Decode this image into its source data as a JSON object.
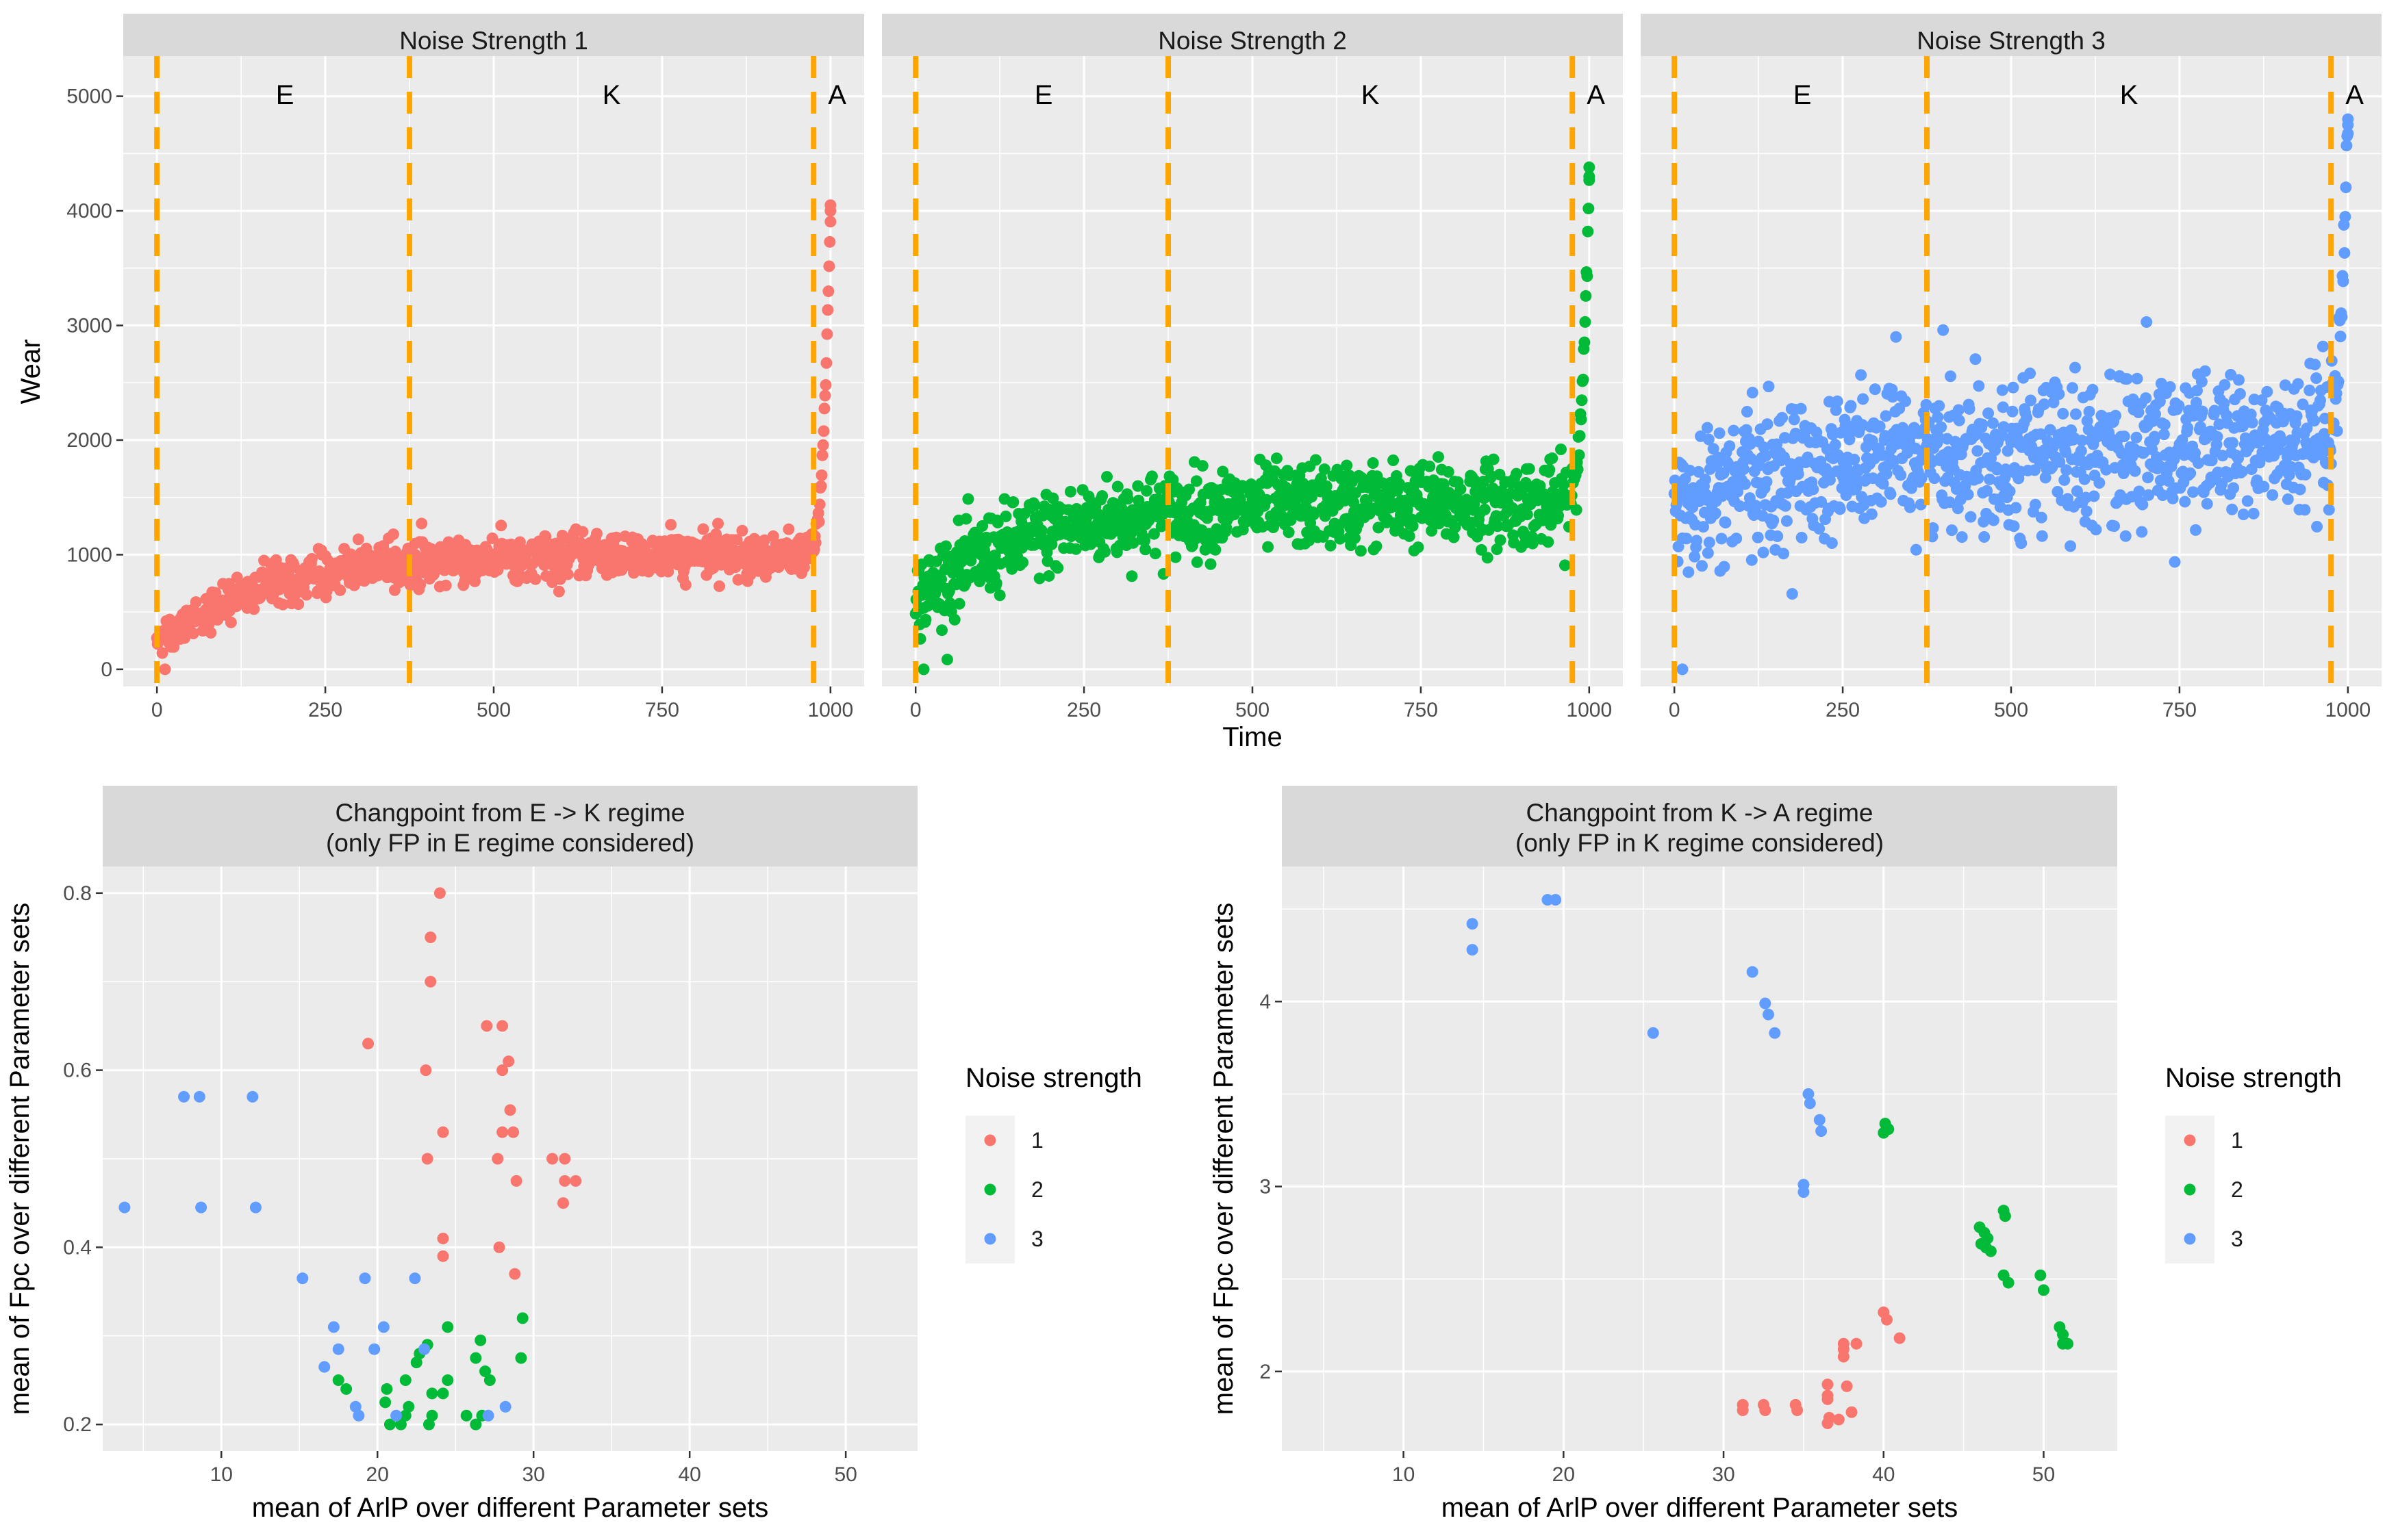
{
  "chart_data": [
    {
      "type": "scatter",
      "facet": "Noise Strength 1",
      "title": "Noise Strength 1",
      "xlabel": "Time",
      "ylabel": "Wear",
      "xlim": [
        -50,
        1050
      ],
      "ylim": [
        -150,
        5350
      ],
      "xticks": [
        0,
        250,
        500,
        750,
        1000
      ],
      "yticks": [
        0,
        1000,
        2000,
        3000,
        4000,
        5000
      ],
      "regime_lines": [
        0,
        375,
        975
      ],
      "regime_labels": [
        {
          "label": "E",
          "x": 190
        },
        {
          "label": "K",
          "x": 675
        },
        {
          "label": "A",
          "x": 1010
        }
      ],
      "color": "#F8766D",
      "trend": {
        "start": 250,
        "plateau": 1000,
        "rate": 0.006,
        "spread": 90,
        "end_values": [
          4000,
          4050
        ]
      },
      "points_note": "~1000 points, Wear rising from ~250 at t=0 to ~1000 plateau, spiking to ~4050 at t~1000"
    },
    {
      "type": "scatter",
      "facet": "Noise Strength 2",
      "title": "Noise Strength 2",
      "xlabel": "Time",
      "ylabel": "Wear",
      "xlim": [
        -50,
        1050
      ],
      "ylim": [
        -150,
        5350
      ],
      "xticks": [
        0,
        250,
        500,
        750,
        1000
      ],
      "yticks": [
        0,
        1000,
        2000,
        3000,
        4000,
        5000
      ],
      "regime_lines": [
        0,
        375,
        975
      ],
      "regime_labels": [
        {
          "label": "E",
          "x": 190
        },
        {
          "label": "K",
          "x": 675
        },
        {
          "label": "A",
          "x": 1010
        }
      ],
      "color": "#00BA38",
      "trend": {
        "start": 600,
        "plateau": 1450,
        "rate": 0.006,
        "spread": 180,
        "end_values": [
          4300,
          4380
        ]
      },
      "points_note": "~1000 points, Wear rising from ~600 to ~1450 plateau, spiking to ~4380 at t~1000"
    },
    {
      "type": "scatter",
      "facet": "Noise Strength 3",
      "title": "Noise Strength 3",
      "xlabel": "Time",
      "ylabel": "Wear",
      "xlim": [
        -50,
        1050
      ],
      "ylim": [
        -150,
        5350
      ],
      "xticks": [
        0,
        250,
        500,
        750,
        1000
      ],
      "yticks": [
        0,
        1000,
        2000,
        3000,
        4000,
        5000
      ],
      "regime_lines": [
        0,
        375,
        975
      ],
      "regime_labels": [
        {
          "label": "E",
          "x": 190
        },
        {
          "label": "K",
          "x": 675
        },
        {
          "label": "A",
          "x": 1010
        }
      ],
      "color": "#619CFF",
      "trend": {
        "start": 1300,
        "plateau": 1950,
        "rate": 0.006,
        "spread": 320,
        "end_values": [
          4750,
          4800
        ]
      },
      "points_note": "~1000 points, Wear rising from ~1300 to ~1950 plateau with wide spread, spiking to ~4800 at t~1000"
    },
    {
      "type": "scatter",
      "title": "Changpoint from E -> K regime\n(only FP in E regime considered)",
      "title_lines": [
        "Changpoint from E -> K regime",
        "(only FP in E regime considered)"
      ],
      "xlabel": "mean of ArlP over different Parameter sets",
      "ylabel": "mean of Fpc over different Parameter sets",
      "xlim": [
        2.4,
        54.6
      ],
      "ylim": [
        0.17,
        0.83
      ],
      "xticks": [
        10,
        20,
        30,
        40,
        50
      ],
      "yticks": [
        0.2,
        0.4,
        0.6,
        0.8
      ],
      "ytick_labels": [
        "0.2",
        "0.4",
        "0.6",
        "0.8"
      ],
      "legend": {
        "title": "Noise strength",
        "entries": [
          "1",
          "2",
          "3"
        ]
      },
      "series": [
        {
          "name": "1",
          "color": "#F8766D",
          "points": [
            [
              24.0,
              0.8
            ],
            [
              23.4,
              0.75
            ],
            [
              23.4,
              0.7
            ],
            [
              19.4,
              0.63
            ],
            [
              27.0,
              0.65
            ],
            [
              28.0,
              0.65
            ],
            [
              28.4,
              0.61
            ],
            [
              28.0,
              0.6
            ],
            [
              23.1,
              0.6
            ],
            [
              28.5,
              0.555
            ],
            [
              24.2,
              0.53
            ],
            [
              28.0,
              0.53
            ],
            [
              28.7,
              0.53
            ],
            [
              31.2,
              0.5
            ],
            [
              32.0,
              0.5
            ],
            [
              23.2,
              0.5
            ],
            [
              27.7,
              0.5
            ],
            [
              32.0,
              0.475
            ],
            [
              32.7,
              0.475
            ],
            [
              28.9,
              0.475
            ],
            [
              31.9,
              0.45
            ],
            [
              24.2,
              0.41
            ],
            [
              24.2,
              0.39
            ],
            [
              27.8,
              0.4
            ],
            [
              28.8,
              0.37
            ]
          ]
        },
        {
          "name": "2",
          "color": "#00BA38",
          "points": [
            [
              29.3,
              0.32
            ],
            [
              24.5,
              0.31
            ],
            [
              22.7,
              0.28
            ],
            [
              23.2,
              0.29
            ],
            [
              26.6,
              0.295
            ],
            [
              26.3,
              0.275
            ],
            [
              29.2,
              0.275
            ],
            [
              22.5,
              0.27
            ],
            [
              26.9,
              0.26
            ],
            [
              27.2,
              0.25
            ],
            [
              24.5,
              0.25
            ],
            [
              21.8,
              0.25
            ],
            [
              17.5,
              0.25
            ],
            [
              18.0,
              0.24
            ],
            [
              20.6,
              0.24
            ],
            [
              23.5,
              0.235
            ],
            [
              24.2,
              0.235
            ],
            [
              20.5,
              0.225
            ],
            [
              22.0,
              0.22
            ],
            [
              23.5,
              0.21
            ],
            [
              25.7,
              0.21
            ],
            [
              26.7,
              0.21
            ],
            [
              21.8,
              0.21
            ],
            [
              21.5,
              0.2
            ],
            [
              23.3,
              0.2
            ],
            [
              26.3,
              0.2
            ],
            [
              20.8,
              0.2
            ]
          ]
        },
        {
          "name": "3",
          "color": "#619CFF",
          "points": [
            [
              7.6,
              0.57
            ],
            [
              8.6,
              0.57
            ],
            [
              12.0,
              0.57
            ],
            [
              3.8,
              0.445
            ],
            [
              8.7,
              0.445
            ],
            [
              12.2,
              0.445
            ],
            [
              15.2,
              0.365
            ],
            [
              19.2,
              0.365
            ],
            [
              22.4,
              0.365
            ],
            [
              17.2,
              0.31
            ],
            [
              20.4,
              0.31
            ],
            [
              17.5,
              0.285
            ],
            [
              19.8,
              0.285
            ],
            [
              23.0,
              0.285
            ],
            [
              16.6,
              0.265
            ],
            [
              18.6,
              0.22
            ],
            [
              18.8,
              0.21
            ],
            [
              21.2,
              0.21
            ],
            [
              27.1,
              0.21
            ],
            [
              28.2,
              0.22
            ]
          ]
        }
      ]
    },
    {
      "type": "scatter",
      "title": "Changpoint from K -> A regime\n(only FP in K regime considered)",
      "title_lines": [
        "Changpoint from K -> A regime",
        "(only FP in K regime considered)"
      ],
      "xlabel": "mean of ArlP over different Parameter sets",
      "ylabel": "mean of Fpc over different Parameter sets",
      "xlim": [
        2.4,
        54.6
      ],
      "ylim": [
        1.57,
        4.73
      ],
      "xticks": [
        10,
        20,
        30,
        40,
        50
      ],
      "yticks": [
        2,
        3,
        4
      ],
      "ytick_labels": [
        "2",
        "3",
        "4"
      ],
      "legend": {
        "title": "Noise strength",
        "entries": [
          "1",
          "2",
          "3"
        ]
      },
      "series": [
        {
          "name": "1",
          "color": "#F8766D",
          "points": [
            [
              40.0,
              2.32
            ],
            [
              40.2,
              2.28
            ],
            [
              41.0,
              2.18
            ],
            [
              37.5,
              2.15
            ],
            [
              38.3,
              2.15
            ],
            [
              37.5,
              2.12
            ],
            [
              37.5,
              2.08
            ],
            [
              36.5,
              1.93
            ],
            [
              37.7,
              1.92
            ],
            [
              36.5,
              1.87
            ],
            [
              36.5,
              1.85
            ],
            [
              38.0,
              1.78
            ],
            [
              31.2,
              1.82
            ],
            [
              32.5,
              1.82
            ],
            [
              34.5,
              1.82
            ],
            [
              31.2,
              1.79
            ],
            [
              32.6,
              1.79
            ],
            [
              34.6,
              1.79
            ],
            [
              36.6,
              1.75
            ],
            [
              37.2,
              1.74
            ],
            [
              36.5,
              1.72
            ]
          ]
        },
        {
          "name": "2",
          "color": "#00BA38",
          "points": [
            [
              40.1,
              3.34
            ],
            [
              40.3,
              3.31
            ],
            [
              40.0,
              3.29
            ],
            [
              47.5,
              2.87
            ],
            [
              47.6,
              2.84
            ],
            [
              46.0,
              2.78
            ],
            [
              46.3,
              2.75
            ],
            [
              46.5,
              2.72
            ],
            [
              46.1,
              2.69
            ],
            [
              46.4,
              2.67
            ],
            [
              46.7,
              2.65
            ],
            [
              47.5,
              2.52
            ],
            [
              47.8,
              2.48
            ],
            [
              49.8,
              2.52
            ],
            [
              50.0,
              2.44
            ],
            [
              51.0,
              2.24
            ],
            [
              51.2,
              2.2
            ],
            [
              51.2,
              2.15
            ],
            [
              51.5,
              2.15
            ]
          ]
        },
        {
          "name": "3",
          "color": "#619CFF",
          "points": [
            [
              19.0,
              4.55
            ],
            [
              19.5,
              4.55
            ],
            [
              14.3,
              4.42
            ],
            [
              14.3,
              4.28
            ],
            [
              31.8,
              4.16
            ],
            [
              32.6,
              3.99
            ],
            [
              32.8,
              3.93
            ],
            [
              33.2,
              3.83
            ],
            [
              25.6,
              3.83
            ],
            [
              35.3,
              3.5
            ],
            [
              35.4,
              3.45
            ],
            [
              36.0,
              3.36
            ],
            [
              36.1,
              3.3
            ],
            [
              35.0,
              3.01
            ],
            [
              35.0,
              2.97
            ]
          ]
        }
      ]
    }
  ]
}
